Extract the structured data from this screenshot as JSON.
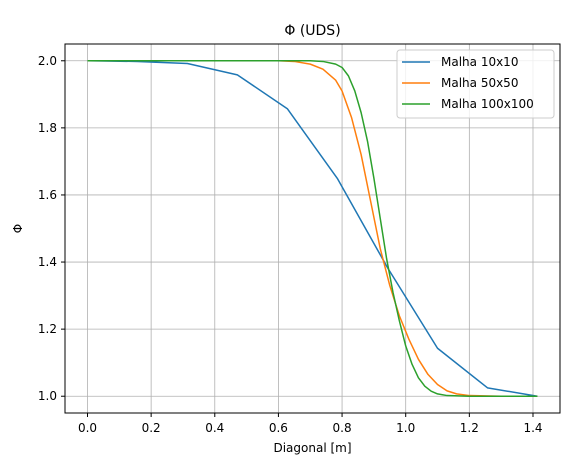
{
  "chart_data": {
    "type": "line",
    "title": "Φ (UDS)",
    "xlabel": "Diagonal [m]",
    "ylabel": "Φ",
    "xlim": [
      -0.0707,
      1.4849
    ],
    "ylim": [
      0.95,
      2.05
    ],
    "xticks": [
      "0.0",
      "0.2",
      "0.4",
      "0.6",
      "0.8",
      "1.0",
      "1.2",
      "1.4"
    ],
    "yticks": [
      "1.0",
      "1.2",
      "1.4",
      "1.6",
      "1.8",
      "2.0"
    ],
    "grid": true,
    "legend_position": "top-right",
    "series": [
      {
        "name": "Malha 10x10",
        "color": "#1f77b4",
        "x": [
          0.0,
          0.157,
          0.314,
          0.471,
          0.628,
          0.786,
          0.943,
          1.1,
          1.257,
          1.414
        ],
        "y": [
          2.0,
          1.998,
          1.992,
          1.958,
          1.857,
          1.648,
          1.383,
          1.143,
          1.025,
          1.0
        ]
      },
      {
        "name": "Malha 50x50",
        "color": "#ff7f0e",
        "x": [
          0.0,
          0.2,
          0.4,
          0.6,
          0.65,
          0.7,
          0.74,
          0.78,
          0.8,
          0.83,
          0.86,
          0.89,
          0.92,
          0.95,
          0.98,
          1.01,
          1.04,
          1.07,
          1.1,
          1.13,
          1.16,
          1.2,
          1.3,
          1.414
        ],
        "y": [
          2.0,
          2.0,
          2.0,
          2.0,
          1.998,
          1.99,
          1.975,
          1.942,
          1.91,
          1.83,
          1.72,
          1.58,
          1.44,
          1.33,
          1.24,
          1.17,
          1.11,
          1.065,
          1.035,
          1.016,
          1.007,
          1.002,
          1.0,
          1.0
        ]
      },
      {
        "name": "Malha 100x100",
        "color": "#2ca02c",
        "x": [
          0.0,
          0.2,
          0.4,
          0.6,
          0.7,
          0.74,
          0.78,
          0.8,
          0.82,
          0.84,
          0.86,
          0.88,
          0.9,
          0.92,
          0.94,
          0.96,
          0.98,
          1.0,
          1.02,
          1.04,
          1.06,
          1.08,
          1.1,
          1.13,
          1.2,
          1.3,
          1.414
        ],
        "y": [
          2.0,
          2.0,
          2.0,
          2.0,
          2.0,
          1.998,
          1.99,
          1.98,
          1.955,
          1.91,
          1.845,
          1.76,
          1.65,
          1.53,
          1.41,
          1.31,
          1.225,
          1.15,
          1.095,
          1.055,
          1.03,
          1.015,
          1.007,
          1.002,
          1.0,
          1.0,
          1.0
        ]
      }
    ]
  }
}
